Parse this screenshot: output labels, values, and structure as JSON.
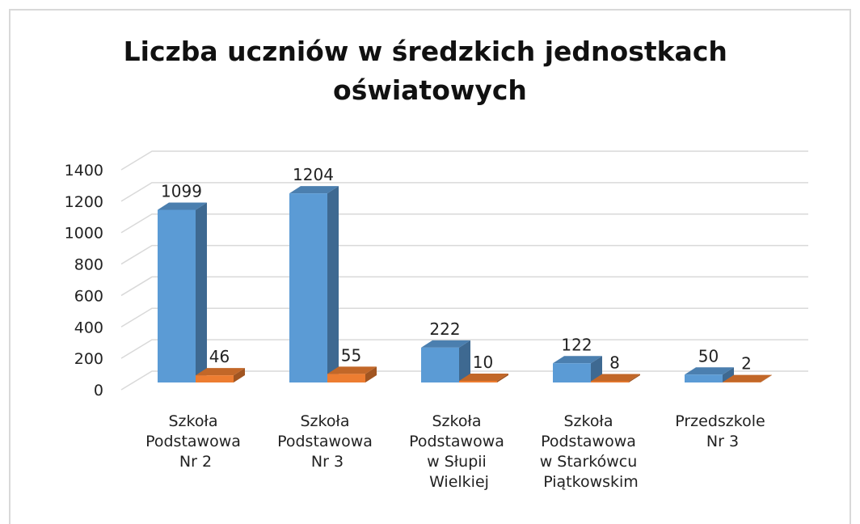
{
  "chart_data": {
    "type": "bar3d",
    "title": "Liczba uczniów w średzkich jednostkach oświatowych",
    "categories": [
      "Szkoła Podstawowa Nr 2",
      "Szkoła Podstawowa Nr 3",
      "Szkoła Podstawowa w Słupii Wielkiej",
      "Szkoła Podstawowa w Starkówcu Piątkowskim",
      "Przedszkole Nr 3"
    ],
    "series": [
      {
        "color": "#5b9bd5",
        "values": [
          1099,
          1204,
          222,
          122,
          50
        ]
      },
      {
        "color": "#ed7d31",
        "values": [
          46,
          55,
          10,
          8,
          2
        ]
      }
    ],
    "ylim": [
      0,
      1400
    ],
    "yticks": [
      0,
      200,
      400,
      600,
      800,
      1000,
      1200,
      1400
    ],
    "grid": true
  }
}
